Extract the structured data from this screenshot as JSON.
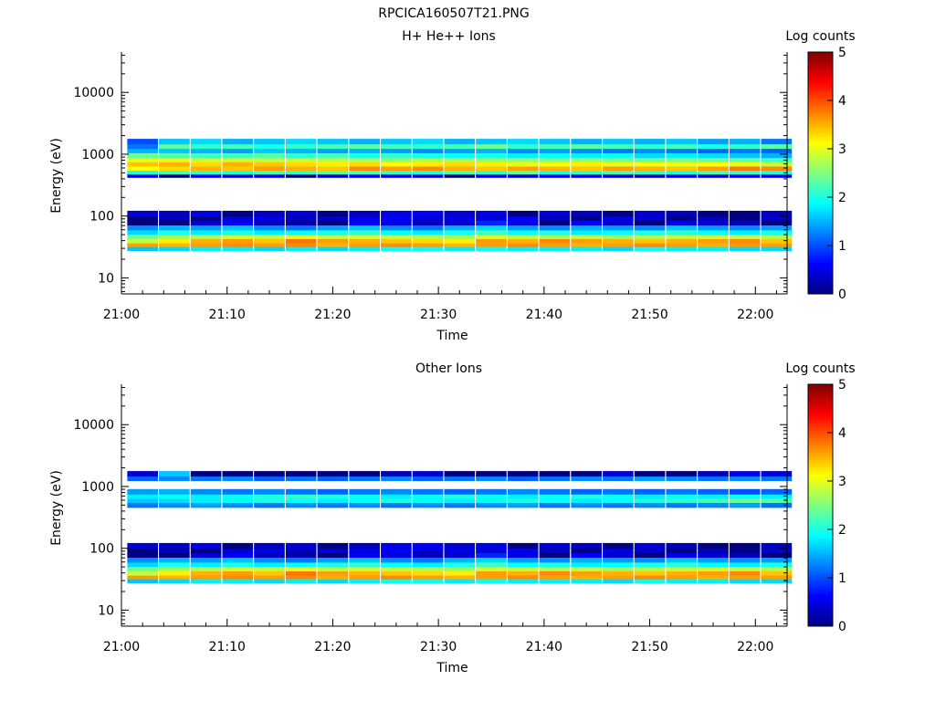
{
  "figure": {
    "title": "RPCICA160507T21.PNG"
  },
  "chart_data": [
    {
      "type": "heatmap",
      "title": "H+ He++ Ions",
      "xlabel": "Time",
      "ylabel": "Energy (eV)",
      "y_scale": "log",
      "ylim": [
        5.5,
        45000
      ],
      "xlim": [
        "21:00",
        "22:03"
      ],
      "x_ticks": [
        "21:00",
        "21:10",
        "21:20",
        "21:30",
        "21:40",
        "21:50",
        "22:00"
      ],
      "y_ticks": [
        "10",
        "100",
        "1000",
        "10000"
      ],
      "colorbar": {
        "label": "Log counts",
        "range": [
          0,
          5
        ],
        "ticks": [
          "0",
          "1",
          "2",
          "3",
          "4",
          "5"
        ]
      },
      "time_bins": [
        "21:02",
        "21:05",
        "21:08",
        "21:11",
        "21:14",
        "21:17",
        "21:20",
        "21:23",
        "21:26",
        "21:29",
        "21:32",
        "21:35",
        "21:38",
        "21:41",
        "21:44",
        "21:47",
        "21:50",
        "21:53",
        "21:56",
        "21:59",
        "22:02"
      ],
      "bands": [
        {
          "energy_eV": 30,
          "log_counts_by_bin": [
            1.6,
            1.7,
            1.8,
            1.8,
            1.7,
            1.8,
            1.7,
            1.8,
            1.9,
            1.9,
            1.8,
            1.9,
            1.8,
            1.8,
            1.8,
            1.7,
            1.9,
            1.8,
            1.8,
            1.7,
            1.7
          ]
        },
        {
          "energy_eV": 35,
          "log_counts_by_bin": [
            3.6,
            3.5,
            3.6,
            3.7,
            3.6,
            3.7,
            3.5,
            3.6,
            3.7,
            3.6,
            3.5,
            3.6,
            3.7,
            3.6,
            3.5,
            3.6,
            3.7,
            3.6,
            3.5,
            3.6,
            3.6
          ]
        },
        {
          "energy_eV": 40,
          "log_counts_by_bin": [
            2.8,
            3.2,
            3.5,
            3.6,
            3.4,
            3.8,
            3.6,
            3.5,
            3.4,
            3.3,
            3.2,
            3.6,
            3.5,
            3.7,
            3.6,
            3.5,
            3.4,
            3.5,
            3.6,
            3.7,
            3.4
          ]
        },
        {
          "energy_eV": 47,
          "log_counts_by_bin": [
            2.4,
            2.6,
            2.7,
            2.9,
            2.8,
            3.0,
            2.8,
            2.9,
            2.8,
            2.7,
            2.6,
            2.9,
            2.8,
            2.7,
            2.8,
            2.6,
            2.7,
            2.8,
            2.9,
            2.8,
            2.7
          ]
        },
        {
          "energy_eV": 55,
          "log_counts_by_bin": [
            1.7,
            2.0,
            1.8,
            2.0,
            1.8,
            1.9,
            2.0,
            2.1,
            1.9,
            1.8,
            2.0,
            2.2,
            1.9,
            2.0,
            1.8,
            1.9,
            2.0,
            2.1,
            1.9,
            1.8,
            2.0
          ]
        },
        {
          "energy_eV": 65,
          "log_counts_by_bin": [
            1.3,
            1.5,
            1.4,
            1.6,
            1.3,
            1.2,
            1.4,
            1.6,
            1.3,
            1.2,
            1.5,
            1.7,
            1.4,
            1.3,
            1.5,
            1.4,
            1.3,
            1.6,
            1.4,
            1.3,
            1.4
          ]
        },
        {
          "energy_eV": 78,
          "log_counts_by_bin": [
            0.0,
            0.0,
            0.4,
            0.6,
            0.3,
            0.2,
            0.0,
            0.6,
            0.5,
            0.3,
            0.4,
            0.8,
            0.5,
            0.0,
            0.6,
            0.4,
            0.0,
            0.5,
            0.4,
            0.3,
            0.0
          ]
        },
        {
          "energy_eV": 93,
          "log_counts_by_bin": [
            0.0,
            0.3,
            0.0,
            0.4,
            0.5,
            0.3,
            0.4,
            0.5,
            0.6,
            0.4,
            0.5,
            0.4,
            0.6,
            0.3,
            0.0,
            0.5,
            0.4,
            0.0,
            0.3,
            0.0,
            0.4
          ]
        },
        {
          "energy_eV": 110,
          "log_counts_by_bin": [
            0.4,
            0.3,
            0.5,
            0.0,
            0.3,
            0.4,
            0.0,
            0.3,
            0.5,
            0.6,
            0.4,
            0.5,
            0.0,
            0.4,
            0.3,
            0.0,
            0.4,
            0.3,
            0.0,
            0.0,
            0.3
          ]
        },
        {
          "energy_eV": 460,
          "log_counts_by_bin": [
            0.5,
            0.0,
            0.6,
            0.4,
            0.5,
            0.0,
            0.4,
            0.6,
            0.5,
            0.4,
            0.0,
            0.5,
            0.4,
            0.6,
            0.5,
            0.4,
            0.3,
            0.5,
            0.4,
            0.6,
            0.5
          ]
        },
        {
          "energy_eV": 520,
          "log_counts_by_bin": [
            2.0,
            2.2,
            2.1,
            2.0,
            2.2,
            2.1,
            2.3,
            2.2,
            2.1,
            2.0,
            2.2,
            2.1,
            2.3,
            2.0,
            2.1,
            2.2,
            2.1,
            2.0,
            2.2,
            2.1,
            2.0
          ]
        },
        {
          "energy_eV": 600,
          "log_counts_by_bin": [
            3.1,
            3.3,
            3.5,
            3.4,
            3.6,
            3.5,
            3.4,
            3.7,
            3.6,
            3.7,
            3.5,
            3.4,
            3.6,
            3.5,
            3.4,
            3.6,
            3.5,
            3.4,
            3.6,
            3.8,
            3.7
          ]
        },
        {
          "energy_eV": 700,
          "log_counts_by_bin": [
            3.4,
            3.5,
            3.3,
            3.5,
            3.4,
            3.3,
            3.2,
            3.3,
            3.1,
            3.2,
            3.3,
            3.2,
            3.0,
            3.1,
            3.2,
            3.0,
            3.1,
            3.0,
            3.1,
            3.0,
            2.8
          ]
        },
        {
          "energy_eV": 820,
          "log_counts_by_bin": [
            3.0,
            3.0,
            2.9,
            2.9,
            2.8,
            2.9,
            2.8,
            2.7,
            2.6,
            2.8,
            2.7,
            2.6,
            2.6,
            2.5,
            2.6,
            2.5,
            2.4,
            2.5,
            2.4,
            2.4,
            2.2
          ]
        },
        {
          "energy_eV": 960,
          "log_counts_by_bin": [
            2.4,
            2.3,
            2.2,
            2.2,
            2.3,
            2.1,
            2.2,
            2.0,
            2.1,
            2.0,
            1.9,
            2.0,
            1.8,
            1.9,
            1.8,
            1.9,
            1.7,
            1.8,
            1.7,
            1.6,
            1.5
          ]
        },
        {
          "energy_eV": 1150,
          "log_counts_by_bin": [
            1.5,
            1.6,
            1.5,
            1.4,
            1.6,
            1.5,
            1.4,
            1.5,
            1.4,
            1.3,
            1.4,
            1.5,
            1.3,
            1.4,
            1.3,
            1.2,
            1.3,
            1.2,
            1.1,
            1.2,
            1.1
          ]
        },
        {
          "energy_eV": 1350,
          "log_counts_by_bin": [
            1.2,
            2.3,
            2.1,
            2.2,
            2.0,
            2.1,
            2.2,
            2.3,
            2.2,
            2.1,
            2.2,
            2.4,
            2.1,
            2.2,
            2.3,
            2.2,
            2.1,
            2.2,
            2.0,
            2.1,
            2.3
          ]
        },
        {
          "energy_eV": 1600,
          "log_counts_by_bin": [
            1.0,
            1.6,
            1.7,
            1.5,
            1.6,
            1.7,
            1.6,
            1.5,
            1.6,
            1.7,
            1.5,
            1.6,
            1.7,
            1.6,
            1.5,
            1.6,
            1.5,
            1.6,
            1.4,
            1.5,
            1.2
          ]
        }
      ]
    },
    {
      "type": "heatmap",
      "title": "Other Ions",
      "xlabel": "Time",
      "ylabel": "Energy (eV)",
      "y_scale": "log",
      "ylim": [
        5.5,
        45000
      ],
      "xlim": [
        "21:00",
        "22:03"
      ],
      "x_ticks": [
        "21:00",
        "21:10",
        "21:20",
        "21:30",
        "21:40",
        "21:50",
        "22:00"
      ],
      "y_ticks": [
        "10",
        "100",
        "1000",
        "10000"
      ],
      "colorbar": {
        "label": "Log counts",
        "range": [
          0,
          5
        ],
        "ticks": [
          "0",
          "1",
          "2",
          "3",
          "4",
          "5"
        ]
      },
      "time_bins": [
        "21:02",
        "21:05",
        "21:08",
        "21:11",
        "21:14",
        "21:17",
        "21:20",
        "21:23",
        "21:26",
        "21:29",
        "21:32",
        "21:35",
        "21:38",
        "21:41",
        "21:44",
        "21:47",
        "21:50",
        "21:53",
        "21:56",
        "21:59",
        "22:02"
      ],
      "bands": [
        {
          "energy_eV": 30,
          "log_counts_by_bin": [
            1.6,
            1.7,
            1.8,
            1.8,
            1.7,
            1.8,
            1.7,
            1.8,
            1.9,
            1.9,
            1.8,
            1.9,
            1.8,
            1.8,
            1.8,
            1.7,
            1.9,
            1.8,
            1.8,
            1.7,
            1.7
          ]
        },
        {
          "energy_eV": 35,
          "log_counts_by_bin": [
            3.6,
            3.5,
            3.6,
            3.7,
            3.6,
            3.7,
            3.5,
            3.6,
            3.7,
            3.6,
            3.5,
            3.6,
            3.7,
            3.6,
            3.5,
            3.6,
            3.7,
            3.6,
            3.5,
            3.6,
            3.6
          ]
        },
        {
          "energy_eV": 40,
          "log_counts_by_bin": [
            2.8,
            3.2,
            3.5,
            3.6,
            3.4,
            3.8,
            3.6,
            3.5,
            3.4,
            3.3,
            3.2,
            3.6,
            3.5,
            3.7,
            3.6,
            3.5,
            3.4,
            3.5,
            3.6,
            3.7,
            3.4
          ]
        },
        {
          "energy_eV": 47,
          "log_counts_by_bin": [
            2.4,
            2.6,
            2.7,
            2.9,
            2.8,
            3.0,
            2.8,
            2.9,
            2.8,
            2.7,
            2.6,
            2.9,
            2.8,
            2.7,
            2.8,
            2.6,
            2.7,
            2.8,
            2.9,
            2.8,
            2.7
          ]
        },
        {
          "energy_eV": 55,
          "log_counts_by_bin": [
            1.7,
            2.0,
            1.8,
            2.0,
            1.8,
            1.9,
            2.0,
            2.1,
            1.9,
            1.8,
            2.0,
            2.2,
            1.9,
            2.0,
            1.8,
            1.9,
            2.0,
            2.1,
            1.9,
            1.8,
            2.0
          ]
        },
        {
          "energy_eV": 65,
          "log_counts_by_bin": [
            1.3,
            1.5,
            1.4,
            1.6,
            1.3,
            1.2,
            1.4,
            1.6,
            1.3,
            1.2,
            1.5,
            1.7,
            1.4,
            1.3,
            1.5,
            1.4,
            1.3,
            1.6,
            1.4,
            1.3,
            1.4
          ]
        },
        {
          "energy_eV": 78,
          "log_counts_by_bin": [
            0.0,
            0.0,
            0.4,
            0.6,
            0.3,
            0.2,
            0.0,
            0.6,
            0.5,
            0.3,
            0.4,
            0.8,
            0.5,
            0.0,
            0.6,
            0.4,
            0.0,
            0.5,
            0.4,
            0.3,
            0.0
          ]
        },
        {
          "energy_eV": 93,
          "log_counts_by_bin": [
            0.0,
            0.3,
            0.0,
            0.4,
            0.5,
            0.3,
            0.4,
            0.5,
            0.6,
            0.4,
            0.5,
            0.4,
            0.6,
            0.3,
            0.0,
            0.5,
            0.4,
            0.0,
            0.3,
            0.0,
            0.4
          ]
        },
        {
          "energy_eV": 110,
          "log_counts_by_bin": [
            0.4,
            0.3,
            0.5,
            0.0,
            0.3,
            0.4,
            0.0,
            0.3,
            0.5,
            0.6,
            0.4,
            0.5,
            0.0,
            0.4,
            0.3,
            0.0,
            0.4,
            0.3,
            0.0,
            0.0,
            0.3
          ]
        },
        {
          "energy_eV": 500,
          "log_counts_by_bin": [
            1.2,
            1.3,
            1.4,
            1.3,
            1.2,
            1.3,
            1.2,
            1.3,
            1.2,
            1.3,
            1.2,
            1.3,
            1.4,
            1.2,
            1.3,
            1.2,
            1.3,
            1.2,
            1.3,
            1.4,
            1.2
          ]
        },
        {
          "energy_eV": 600,
          "log_counts_by_bin": [
            1.6,
            1.7,
            1.8,
            1.9,
            2.0,
            1.9,
            1.8,
            1.9,
            2.0,
            1.9,
            1.8,
            1.9,
            2.0,
            1.9,
            1.8,
            1.9,
            2.0,
            2.1,
            2.2,
            2.4,
            2.3
          ]
        },
        {
          "energy_eV": 700,
          "log_counts_by_bin": [
            1.8,
            1.9,
            1.8,
            1.9,
            2.0,
            2.1,
            2.0,
            1.9,
            1.8,
            1.9,
            2.0,
            1.9,
            1.8,
            1.9,
            2.0,
            1.9,
            1.8,
            1.9,
            1.8,
            1.9,
            1.8
          ]
        },
        {
          "energy_eV": 820,
          "log_counts_by_bin": [
            1.4,
            1.5,
            1.3,
            1.2,
            1.3,
            1.2,
            1.1,
            1.2,
            1.3,
            1.2,
            1.1,
            1.2,
            1.3,
            1.2,
            1.1,
            1.2,
            1.1,
            1.2,
            1.1,
            1.0,
            1.1
          ]
        },
        {
          "energy_eV": 1350,
          "log_counts_by_bin": [
            1.1,
            1.3,
            1.2,
            1.3,
            1.1,
            1.2,
            1.1,
            1.2,
            1.3,
            1.1,
            1.2,
            1.3,
            1.1,
            1.2,
            1.3,
            1.2,
            1.4,
            1.3,
            1.2,
            1.3,
            1.2
          ]
        },
        {
          "energy_eV": 1600,
          "log_counts_by_bin": [
            0.4,
            1.6,
            0.0,
            0.0,
            0.0,
            0.0,
            0.0,
            0.0,
            0.3,
            0.4,
            0.0,
            0.0,
            0.0,
            0.0,
            0.0,
            0.4,
            0.0,
            0.0,
            0.3,
            0.5,
            0.4
          ]
        }
      ]
    }
  ]
}
